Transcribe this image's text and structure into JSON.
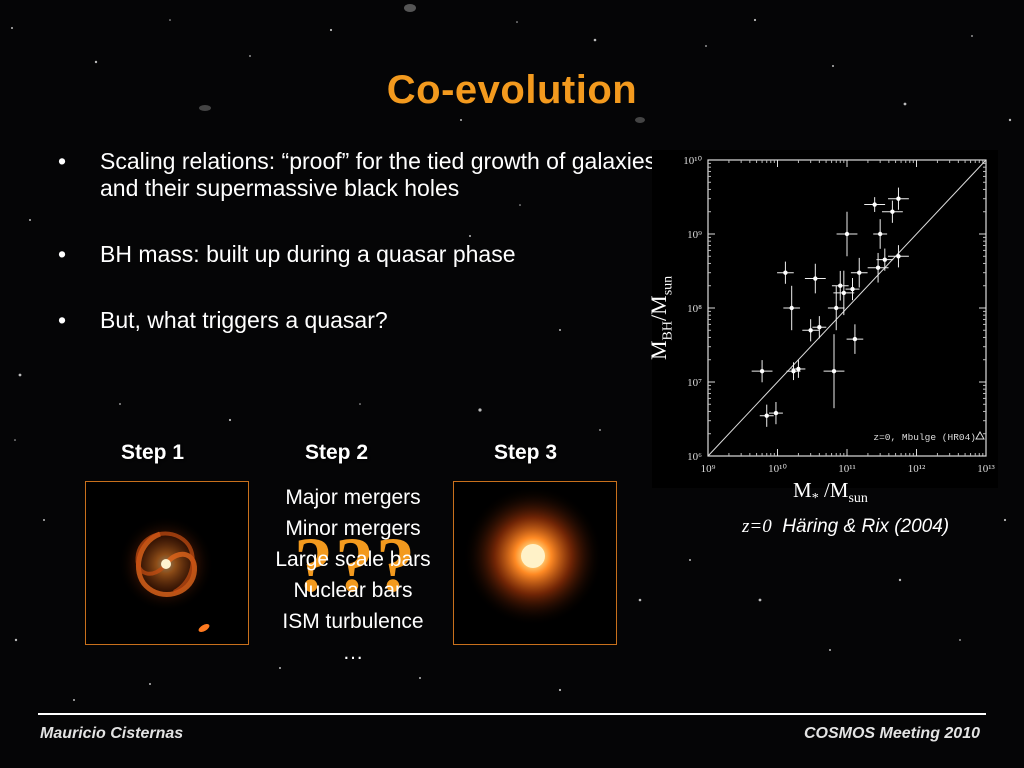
{
  "slide": {
    "title": "Co-evolution",
    "bullets": [
      "Scaling relations: “proof” for the tied growth of galaxies and their supermassive black holes",
      "BH mass: built up during a quasar phase",
      "But, what triggers a quasar?"
    ],
    "bullet_marker": "•"
  },
  "steps": {
    "step1": "Step 1",
    "step2": "Step 2",
    "step3": "Step 3",
    "question_marks": "???",
    "mechanisms": [
      "Major mergers",
      "Minor mergers",
      "Large scale bars",
      "Nuclear bars",
      "ISM turbulence",
      "…"
    ]
  },
  "figure": {
    "ylabel": {
      "main": "M",
      "sub1": "BH",
      "slash": "/M",
      "sub2": "sun"
    },
    "xlabel": {
      "main": "M",
      "sub1": "*",
      "slash": " /M",
      "sub2": "sun"
    },
    "citation": {
      "z": "z=0",
      "ref": "Häring & Rix (2004)"
    }
  },
  "chart_data": {
    "type": "scatter",
    "log_x": true,
    "log_y": true,
    "xlim": [
      1000000000.0,
      10000000000000.0
    ],
    "ylim": [
      1000000.0,
      10000000000.0
    ],
    "x_ticks": [
      "10⁹",
      "10¹⁰",
      "10¹¹",
      "10¹²",
      "10¹³"
    ],
    "y_ticks": [
      "10⁶",
      "10⁷",
      "10⁸",
      "10⁹",
      "10¹⁰"
    ],
    "legend": "z=0, Mbulge (HR04)",
    "legend_position": "bottom-right",
    "relation_line": {
      "x": [
        1000000000.0,
        10000000000000.0
      ],
      "y": [
        1000000.0,
        10000000000.0
      ]
    },
    "points": [
      {
        "x": 6000000000.0,
        "y": 14000000.0,
        "xerr_dex": 0.15,
        "yerr_dex": 0.15
      },
      {
        "x": 7000000000.0,
        "y": 3500000.0,
        "xerr_dex": 0.1,
        "yerr_dex": 0.15
      },
      {
        "x": 9500000000.0,
        "y": 3800000.0,
        "xerr_dex": 0.1,
        "yerr_dex": 0.15
      },
      {
        "x": 13000000000.0,
        "y": 300000000.0,
        "xerr_dex": 0.12,
        "yerr_dex": 0.15
      },
      {
        "x": 16000000000.0,
        "y": 100000000.0,
        "xerr_dex": 0.12,
        "yerr_dex": 0.3
      },
      {
        "x": 17000000000.0,
        "y": 14000000.0,
        "xerr_dex": 0.1,
        "yerr_dex": 0.12
      },
      {
        "x": 20000000000.0,
        "y": 15000000.0,
        "xerr_dex": 0.1,
        "yerr_dex": 0.12
      },
      {
        "x": 30000000000.0,
        "y": 50000000.0,
        "xerr_dex": 0.12,
        "yerr_dex": 0.15
      },
      {
        "x": 35000000000.0,
        "y": 250000000.0,
        "xerr_dex": 0.15,
        "yerr_dex": 0.2
      },
      {
        "x": 40000000000.0,
        "y": 55000000.0,
        "xerr_dex": 0.1,
        "yerr_dex": 0.15
      },
      {
        "x": 65000000000.0,
        "y": 14000000.0,
        "xerr_dex": 0.15,
        "yerr_dex": 0.5
      },
      {
        "x": 70000000000.0,
        "y": 100000000.0,
        "xerr_dex": 0.12,
        "yerr_dex": 0.3
      },
      {
        "x": 80000000000.0,
        "y": 200000000.0,
        "xerr_dex": 0.12,
        "yerr_dex": 0.2
      },
      {
        "x": 90000000000.0,
        "y": 160000000.0,
        "xerr_dex": 0.15,
        "yerr_dex": 0.3
      },
      {
        "x": 100000000000.0,
        "y": 1000000000.0,
        "xerr_dex": 0.15,
        "yerr_dex": 0.3
      },
      {
        "x": 120000000000.0,
        "y": 180000000.0,
        "xerr_dex": 0.1,
        "yerr_dex": 0.15
      },
      {
        "x": 130000000000.0,
        "y": 38000000.0,
        "xerr_dex": 0.12,
        "yerr_dex": 0.2
      },
      {
        "x": 150000000000.0,
        "y": 300000000.0,
        "xerr_dex": 0.12,
        "yerr_dex": 0.2
      },
      {
        "x": 250000000000.0,
        "y": 2500000000.0,
        "xerr_dex": 0.15,
        "yerr_dex": 0.1
      },
      {
        "x": 280000000000.0,
        "y": 350000000.0,
        "xerr_dex": 0.15,
        "yerr_dex": 0.2
      },
      {
        "x": 300000000000.0,
        "y": 1000000000.0,
        "xerr_dex": 0.1,
        "yerr_dex": 0.2
      },
      {
        "x": 350000000000.0,
        "y": 450000000.0,
        "xerr_dex": 0.12,
        "yerr_dex": 0.15
      },
      {
        "x": 450000000000.0,
        "y": 2000000000.0,
        "xerr_dex": 0.15,
        "yerr_dex": 0.15
      },
      {
        "x": 550000000000.0,
        "y": 3000000000.0,
        "xerr_dex": 0.15,
        "yerr_dex": 0.15
      },
      {
        "x": 550000000000.0,
        "y": 500000000.0,
        "xerr_dex": 0.15,
        "yerr_dex": 0.15
      }
    ]
  }
}
